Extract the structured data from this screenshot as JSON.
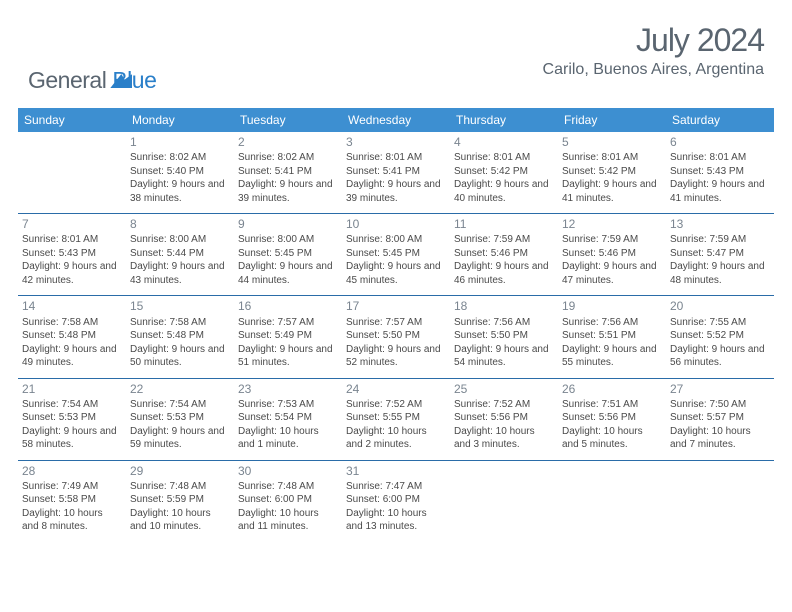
{
  "brand": {
    "general": "General",
    "blue": "Blue"
  },
  "title": "July 2024",
  "location": "Carilo, Buenos Aires, Argentina",
  "colors": {
    "header_bg": "#3d8fd1",
    "header_text": "#ffffff",
    "border": "#2a6ca8",
    "daynum": "#7a8590",
    "body_text": "#4a4a4a",
    "title_text": "#5a6570",
    "brand_blue": "#2a7fc9"
  },
  "day_names": [
    "Sunday",
    "Monday",
    "Tuesday",
    "Wednesday",
    "Thursday",
    "Friday",
    "Saturday"
  ],
  "weeks": [
    [
      null,
      {
        "n": "1",
        "sr": "8:02 AM",
        "ss": "5:40 PM",
        "dl": "9 hours and 38 minutes."
      },
      {
        "n": "2",
        "sr": "8:02 AM",
        "ss": "5:41 PM",
        "dl": "9 hours and 39 minutes."
      },
      {
        "n": "3",
        "sr": "8:01 AM",
        "ss": "5:41 PM",
        "dl": "9 hours and 39 minutes."
      },
      {
        "n": "4",
        "sr": "8:01 AM",
        "ss": "5:42 PM",
        "dl": "9 hours and 40 minutes."
      },
      {
        "n": "5",
        "sr": "8:01 AM",
        "ss": "5:42 PM",
        "dl": "9 hours and 41 minutes."
      },
      {
        "n": "6",
        "sr": "8:01 AM",
        "ss": "5:43 PM",
        "dl": "9 hours and 41 minutes."
      }
    ],
    [
      {
        "n": "7",
        "sr": "8:01 AM",
        "ss": "5:43 PM",
        "dl": "9 hours and 42 minutes."
      },
      {
        "n": "8",
        "sr": "8:00 AM",
        "ss": "5:44 PM",
        "dl": "9 hours and 43 minutes."
      },
      {
        "n": "9",
        "sr": "8:00 AM",
        "ss": "5:45 PM",
        "dl": "9 hours and 44 minutes."
      },
      {
        "n": "10",
        "sr": "8:00 AM",
        "ss": "5:45 PM",
        "dl": "9 hours and 45 minutes."
      },
      {
        "n": "11",
        "sr": "7:59 AM",
        "ss": "5:46 PM",
        "dl": "9 hours and 46 minutes."
      },
      {
        "n": "12",
        "sr": "7:59 AM",
        "ss": "5:46 PM",
        "dl": "9 hours and 47 minutes."
      },
      {
        "n": "13",
        "sr": "7:59 AM",
        "ss": "5:47 PM",
        "dl": "9 hours and 48 minutes."
      }
    ],
    [
      {
        "n": "14",
        "sr": "7:58 AM",
        "ss": "5:48 PM",
        "dl": "9 hours and 49 minutes."
      },
      {
        "n": "15",
        "sr": "7:58 AM",
        "ss": "5:48 PM",
        "dl": "9 hours and 50 minutes."
      },
      {
        "n": "16",
        "sr": "7:57 AM",
        "ss": "5:49 PM",
        "dl": "9 hours and 51 minutes."
      },
      {
        "n": "17",
        "sr": "7:57 AM",
        "ss": "5:50 PM",
        "dl": "9 hours and 52 minutes."
      },
      {
        "n": "18",
        "sr": "7:56 AM",
        "ss": "5:50 PM",
        "dl": "9 hours and 54 minutes."
      },
      {
        "n": "19",
        "sr": "7:56 AM",
        "ss": "5:51 PM",
        "dl": "9 hours and 55 minutes."
      },
      {
        "n": "20",
        "sr": "7:55 AM",
        "ss": "5:52 PM",
        "dl": "9 hours and 56 minutes."
      }
    ],
    [
      {
        "n": "21",
        "sr": "7:54 AM",
        "ss": "5:53 PM",
        "dl": "9 hours and 58 minutes."
      },
      {
        "n": "22",
        "sr": "7:54 AM",
        "ss": "5:53 PM",
        "dl": "9 hours and 59 minutes."
      },
      {
        "n": "23",
        "sr": "7:53 AM",
        "ss": "5:54 PM",
        "dl": "10 hours and 1 minute."
      },
      {
        "n": "24",
        "sr": "7:52 AM",
        "ss": "5:55 PM",
        "dl": "10 hours and 2 minutes."
      },
      {
        "n": "25",
        "sr": "7:52 AM",
        "ss": "5:56 PM",
        "dl": "10 hours and 3 minutes."
      },
      {
        "n": "26",
        "sr": "7:51 AM",
        "ss": "5:56 PM",
        "dl": "10 hours and 5 minutes."
      },
      {
        "n": "27",
        "sr": "7:50 AM",
        "ss": "5:57 PM",
        "dl": "10 hours and 7 minutes."
      }
    ],
    [
      {
        "n": "28",
        "sr": "7:49 AM",
        "ss": "5:58 PM",
        "dl": "10 hours and 8 minutes."
      },
      {
        "n": "29",
        "sr": "7:48 AM",
        "ss": "5:59 PM",
        "dl": "10 hours and 10 minutes."
      },
      {
        "n": "30",
        "sr": "7:48 AM",
        "ss": "6:00 PM",
        "dl": "10 hours and 11 minutes."
      },
      {
        "n": "31",
        "sr": "7:47 AM",
        "ss": "6:00 PM",
        "dl": "10 hours and 13 minutes."
      },
      null,
      null,
      null
    ]
  ],
  "labels": {
    "sunrise": "Sunrise: ",
    "sunset": "Sunset: ",
    "daylight": "Daylight: "
  }
}
